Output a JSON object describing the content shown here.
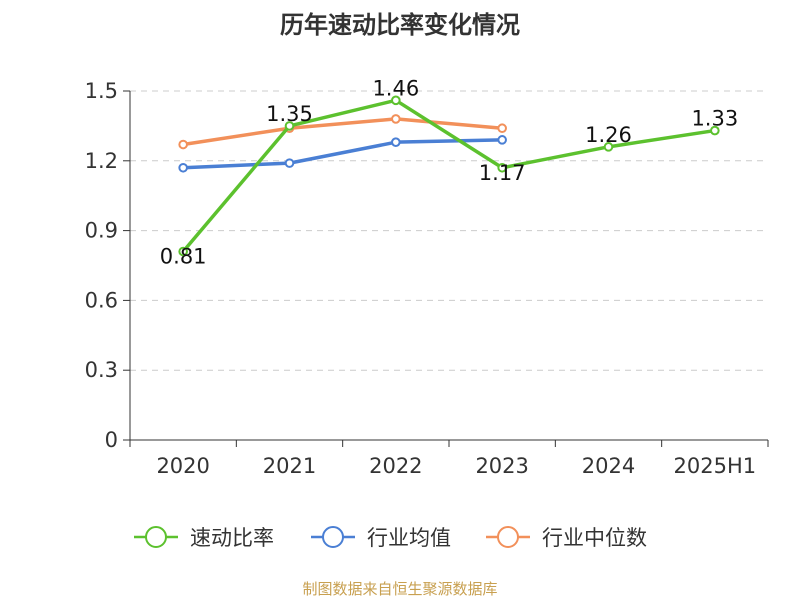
{
  "title": "历年速动比率变化情况",
  "source": "制图数据来自恒生聚源数据库",
  "chart_data": {
    "type": "line",
    "categories": [
      "2020",
      "2021",
      "2022",
      "2023",
      "2024",
      "2025H1"
    ],
    "ylim": [
      0,
      1.5
    ],
    "yticks": [
      "0",
      "0.3",
      "0.6",
      "0.9",
      "1.2",
      "1.5"
    ],
    "grid": true,
    "legend_position": "bottom",
    "series": [
      {
        "name": "速动比率",
        "color": "#5cc12e",
        "values": [
          0.81,
          1.35,
          1.46,
          1.17,
          1.26,
          1.33
        ],
        "labels": [
          "0.81",
          "1.35",
          "1.46",
          "1.17",
          "1.26",
          "1.33"
        ]
      },
      {
        "name": "行业均值",
        "color": "#4a7fd4",
        "values": [
          1.17,
          1.19,
          1.28,
          1.29,
          null,
          null
        ]
      },
      {
        "name": "行业中位数",
        "color": "#f2905a",
        "values": [
          1.27,
          1.34,
          1.38,
          1.34,
          null,
          null
        ]
      }
    ]
  }
}
